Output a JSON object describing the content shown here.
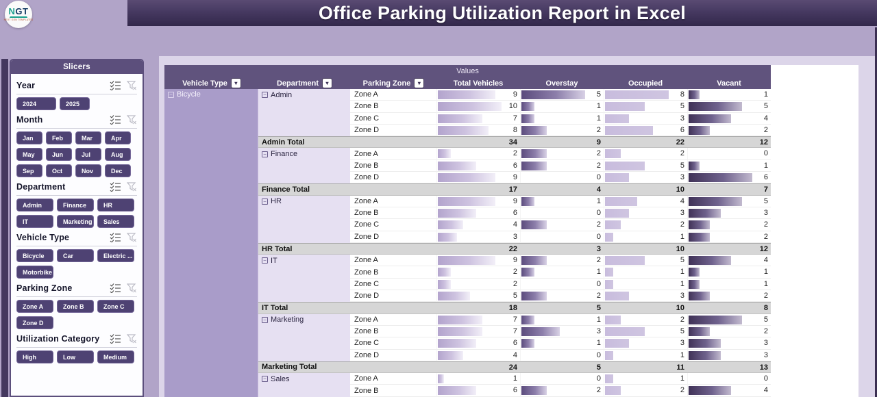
{
  "header": {
    "title": "Office Parking Utilization Report in Excel",
    "logo": {
      "text_accent": "N",
      "text_rest": "GT",
      "tagline": "NEXT GEN TEMPLATES"
    }
  },
  "slicers": {
    "panel_title": "Slicers",
    "sections": [
      {
        "name": "Year",
        "items": [
          "2024",
          "2025"
        ]
      },
      {
        "name": "Month",
        "items": [
          "Jan",
          "Feb",
          "Mar",
          "Apr",
          "May",
          "Jun",
          "Jul",
          "Aug",
          "Sep",
          "Oct",
          "Nov",
          "Dec"
        ]
      },
      {
        "name": "Department",
        "items": [
          "Admin",
          "Finance",
          "HR",
          "IT",
          "Marketing",
          "Sales"
        ]
      },
      {
        "name": "Vehicle Type",
        "items": [
          "Bicycle",
          "Car",
          "Electric ...",
          "Motorbike"
        ]
      },
      {
        "name": "Parking Zone",
        "items": [
          "Zone A",
          "Zone B",
          "Zone C",
          "Zone D"
        ]
      },
      {
        "name": "Utilization Category",
        "items": [
          "High",
          "Low",
          "Medium"
        ]
      }
    ],
    "icons": [
      "multi-select",
      "clear-filter"
    ]
  },
  "table": {
    "values_label": "Values",
    "columns": [
      "Vehicle Type",
      "Department",
      "Parking Zone",
      "Total Vehicles",
      "Overstay",
      "Occupied",
      "Vacant"
    ],
    "vehicle_type": "Bicycle",
    "bar_max": {
      "total": 10,
      "overstay": 5,
      "occupied": 8,
      "vacant": 6
    },
    "groups": [
      {
        "department": "Admin",
        "rows": [
          [
            "Zone A",
            9,
            5,
            8,
            1
          ],
          [
            "Zone B",
            10,
            1,
            5,
            5
          ],
          [
            "Zone C",
            7,
            1,
            3,
            4
          ],
          [
            "Zone D",
            8,
            2,
            6,
            2
          ]
        ],
        "total": {
          "label": "Admin Total",
          "values": [
            34,
            9,
            22,
            12
          ]
        }
      },
      {
        "department": "Finance",
        "rows": [
          [
            "Zone A",
            2,
            2,
            2,
            0
          ],
          [
            "Zone B",
            6,
            2,
            5,
            1
          ],
          [
            "Zone D",
            9,
            0,
            3,
            6
          ]
        ],
        "total": {
          "label": "Finance Total",
          "values": [
            17,
            4,
            10,
            7
          ]
        }
      },
      {
        "department": "HR",
        "rows": [
          [
            "Zone A",
            9,
            1,
            4,
            5
          ],
          [
            "Zone B",
            6,
            0,
            3,
            3
          ],
          [
            "Zone C",
            4,
            2,
            2,
            2
          ],
          [
            "Zone D",
            3,
            0,
            1,
            2
          ]
        ],
        "total": {
          "label": "HR Total",
          "values": [
            22,
            3,
            10,
            12
          ]
        }
      },
      {
        "department": "IT",
        "rows": [
          [
            "Zone A",
            9,
            2,
            5,
            4
          ],
          [
            "Zone B",
            2,
            1,
            1,
            1
          ],
          [
            "Zone C",
            2,
            0,
            1,
            1
          ],
          [
            "Zone D",
            5,
            2,
            3,
            2
          ]
        ],
        "total": {
          "label": "IT Total",
          "values": [
            18,
            5,
            10,
            8
          ]
        }
      },
      {
        "department": "Marketing",
        "rows": [
          [
            "Zone A",
            7,
            1,
            2,
            5
          ],
          [
            "Zone B",
            7,
            3,
            5,
            2
          ],
          [
            "Zone C",
            6,
            1,
            3,
            3
          ],
          [
            "Zone D",
            4,
            0,
            1,
            3
          ]
        ],
        "total": {
          "label": "Marketing Total",
          "values": [
            24,
            5,
            11,
            13
          ]
        }
      },
      {
        "department": "Sales",
        "rows": [
          [
            "Zone A",
            1,
            0,
            1,
            0
          ],
          [
            "Zone B",
            6,
            2,
            2,
            4
          ]
        ],
        "total": null
      }
    ]
  },
  "colors": {
    "page_bg": "#b1a4c8",
    "banner": "#463961",
    "panel_accent": "#5c4f7c",
    "slicer_button": "#4e4273",
    "vehicle_column": "#a99cc9",
    "department_cell": "#e6e0f2",
    "total_row": "#d6d6d6",
    "bar_total": "#b3a4cd",
    "bar_overstay": "#5b4b7d",
    "bar_occupied": "#c8bcdd",
    "bar_vacant": "#403257"
  }
}
